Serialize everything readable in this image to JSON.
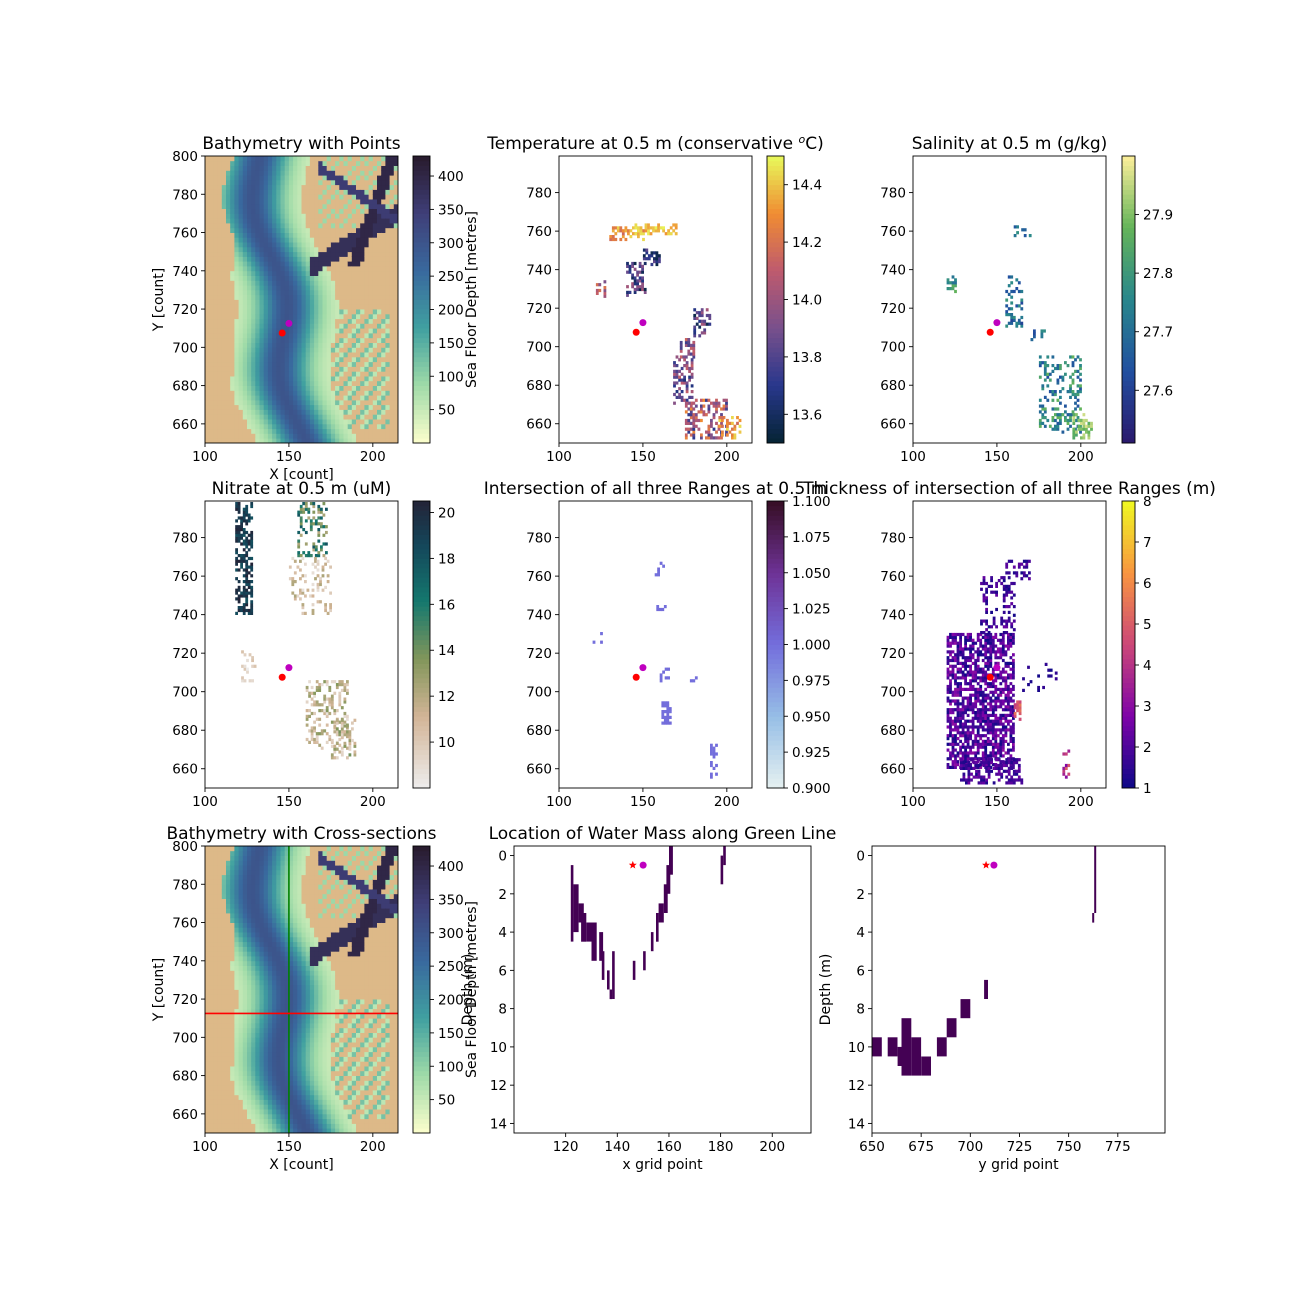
{
  "chart_data": [
    {
      "id": "bathy_points",
      "type": "heatmap",
      "title": "Bathymetry with Points",
      "xlabel": "X [count]",
      "ylabel": "Y [count]",
      "xlim": [
        100,
        215
      ],
      "ylim": [
        650,
        800
      ],
      "xticks": [
        "100",
        "150",
        "200"
      ],
      "yticks": [
        "660",
        "680",
        "700",
        "720",
        "740",
        "760",
        "780",
        "800"
      ],
      "colorbar": {
        "label": "Sea Floor Depth [metres]",
        "range": [
          0,
          430
        ],
        "ticks": [
          "50",
          "100",
          "150",
          "200",
          "250",
          "300",
          "350",
          "400"
        ],
        "colormap": "deep"
      },
      "points": [
        {
          "x": 146,
          "y": 707.5,
          "color": "#ff0000"
        },
        {
          "x": 150,
          "y": 712.5,
          "color": "#bf00bf"
        }
      ]
    },
    {
      "id": "temperature",
      "type": "heatmap",
      "title": "Temperature at 0.5 m (conservative ",
      "title_sup": "o",
      "title_end": "C)",
      "xlim": [
        100,
        215
      ],
      "ylim": [
        650,
        799
      ],
      "xticks": [
        "100",
        "150",
        "200"
      ],
      "yticks": [
        "660",
        "680",
        "700",
        "720",
        "740",
        "760",
        "780"
      ],
      "colorbar": {
        "label": "",
        "range": [
          13.5,
          14.5
        ],
        "ticks": [
          "13.6",
          "13.8",
          "14.0",
          "14.2",
          "14.4"
        ],
        "colormap": "thermal"
      },
      "points": [
        {
          "x": 146,
          "y": 707.5,
          "color": "#ff0000"
        },
        {
          "x": 150,
          "y": 712.5,
          "color": "#bf00bf"
        }
      ]
    },
    {
      "id": "salinity",
      "type": "heatmap",
      "title": "Salinity at 0.5 m (g/kg)",
      "xlim": [
        100,
        215
      ],
      "ylim": [
        650,
        799
      ],
      "xticks": [
        "100",
        "150",
        "200"
      ],
      "yticks": [
        "660",
        "680",
        "700",
        "720",
        "740",
        "760",
        "780"
      ],
      "colorbar": {
        "label": "",
        "range": [
          27.51,
          28.0
        ],
        "ticks": [
          "27.6",
          "27.7",
          "27.8",
          "27.9"
        ],
        "colormap": "haline"
      },
      "points": [
        {
          "x": 146,
          "y": 707.5,
          "color": "#ff0000"
        },
        {
          "x": 150,
          "y": 712.5,
          "color": "#bf00bf"
        }
      ]
    },
    {
      "id": "nitrate",
      "type": "heatmap",
      "title": "Nitrate at 0.5 m (uM)",
      "xlim": [
        100,
        215
      ],
      "ylim": [
        650,
        799
      ],
      "xticks": [
        "100",
        "150",
        "200"
      ],
      "yticks": [
        "660",
        "680",
        "700",
        "720",
        "740",
        "760",
        "780"
      ],
      "colorbar": {
        "label": "",
        "range": [
          8,
          20.5
        ],
        "ticks": [
          "10",
          "12",
          "14",
          "16",
          "18",
          "20"
        ],
        "colormap": "rain"
      },
      "points": [
        {
          "x": 146,
          "y": 707.5,
          "color": "#ff0000"
        },
        {
          "x": 150,
          "y": 712.5,
          "color": "#bf00bf"
        }
      ]
    },
    {
      "id": "intersection",
      "type": "heatmap",
      "title": "Intersection of all three Ranges at 0.5 m",
      "xlim": [
        100,
        215
      ],
      "ylim": [
        650,
        799
      ],
      "xticks": [
        "100",
        "150",
        "200"
      ],
      "yticks": [
        "660",
        "680",
        "700",
        "720",
        "740",
        "760",
        "780"
      ],
      "colorbar": {
        "label": "",
        "range": [
          0.9,
          1.1
        ],
        "ticks": [
          "0.900",
          "0.925",
          "0.950",
          "0.975",
          "1.000",
          "1.025",
          "1.050",
          "1.075",
          "1.100"
        ],
        "colormap": "dense"
      },
      "points": [
        {
          "x": 146,
          "y": 707.5,
          "color": "#ff0000"
        },
        {
          "x": 150,
          "y": 712.5,
          "color": "#bf00bf"
        }
      ]
    },
    {
      "id": "thickness",
      "type": "heatmap",
      "title": "Thickness of intersection of all three Ranges (m)",
      "xlim": [
        100,
        215
      ],
      "ylim": [
        650,
        799
      ],
      "xticks": [
        "100",
        "150",
        "200"
      ],
      "yticks": [
        "660",
        "680",
        "700",
        "720",
        "740",
        "760",
        "780"
      ],
      "colorbar": {
        "label": "",
        "range": [
          1,
          8
        ],
        "ticks": [
          "1",
          "2",
          "3",
          "4",
          "5",
          "6",
          "7",
          "8"
        ],
        "colormap": "plasma"
      },
      "points": [
        {
          "x": 146,
          "y": 707.5,
          "color": "#ff0000"
        },
        {
          "x": 150,
          "y": 712.5,
          "color": "#bf00bf"
        }
      ]
    },
    {
      "id": "bathy_sections",
      "type": "heatmap",
      "title": "Bathymetry with Cross-sections",
      "xlabel": "X [count]",
      "ylabel": "Y [count]",
      "xlim": [
        100,
        215
      ],
      "ylim": [
        650,
        800
      ],
      "xticks": [
        "100",
        "150",
        "200"
      ],
      "yticks": [
        "660",
        "680",
        "700",
        "720",
        "740",
        "760",
        "780",
        "800"
      ],
      "colorbar": {
        "label": "Sea Floor Depth [metres]",
        "range": [
          0,
          430
        ],
        "ticks": [
          "50",
          "100",
          "150",
          "200",
          "250",
          "300",
          "350",
          "400"
        ],
        "colormap": "deep"
      },
      "lines": [
        {
          "orientation": "vertical",
          "value": 150,
          "color": "#008000"
        },
        {
          "orientation": "horizontal",
          "value": 712.5,
          "color": "#ff0000"
        }
      ]
    },
    {
      "id": "green_section",
      "type": "heatmap",
      "title": "Location of Water Mass along Green Line",
      "xlabel": "x grid point",
      "ylabel": "Depth (m)",
      "xlim": [
        100,
        215
      ],
      "ylim": [
        14.5,
        -0.5
      ],
      "xticks": [
        "120",
        "140",
        "160",
        "180",
        "200"
      ],
      "yticks": [
        "0",
        "2",
        "4",
        "6",
        "8",
        "10",
        "12",
        "14"
      ],
      "color": "#440154",
      "cells": [
        [
          122,
          0.5,
          1,
          4
        ],
        [
          123,
          1.5,
          2,
          2.5
        ],
        [
          125,
          2.5,
          2,
          1
        ],
        [
          126,
          3,
          2,
          1.5
        ],
        [
          128,
          3.5,
          2,
          1
        ],
        [
          130,
          3.5,
          2,
          2
        ],
        [
          133,
          4,
          1.5,
          1.5
        ],
        [
          134,
          5,
          1,
          1.5
        ],
        [
          136,
          6,
          1,
          1
        ],
        [
          137,
          7,
          1,
          0.5
        ],
        [
          138,
          5,
          1,
          2.5
        ],
        [
          146,
          5.5,
          1,
          1
        ],
        [
          150,
          5,
          1,
          1
        ],
        [
          153,
          4,
          1,
          1
        ],
        [
          155,
          3,
          1,
          1.5
        ],
        [
          156,
          2.5,
          2,
          1
        ],
        [
          158,
          1.5,
          1.5,
          1.5
        ],
        [
          159,
          0.5,
          1.5,
          1.5
        ],
        [
          160,
          -0.5,
          1.5,
          1.5
        ],
        [
          180,
          0,
          1,
          1.5
        ],
        [
          181,
          -0.5,
          1,
          1
        ]
      ],
      "points": [
        {
          "x": 146,
          "y": 0.5,
          "color": "#ff0000",
          "marker": "star"
        },
        {
          "x": 150,
          "y": 0.5,
          "color": "#bf00bf",
          "marker": "circle"
        }
      ]
    },
    {
      "id": "red_section",
      "type": "heatmap",
      "title": "",
      "xlabel": "y grid point",
      "ylabel": "Depth (m)",
      "xlim": [
        650,
        799
      ],
      "ylim": [
        14.5,
        -0.5
      ],
      "xticks": [
        "650",
        "675",
        "700",
        "725",
        "750",
        "775"
      ],
      "yticks": [
        "0",
        "2",
        "4",
        "6",
        "8",
        "10",
        "12",
        "14"
      ],
      "color": "#440154",
      "cells": [
        [
          650,
          9.5,
          5,
          1
        ],
        [
          658,
          9.5,
          5,
          1
        ],
        [
          663,
          10,
          5,
          1
        ],
        [
          665,
          8.5,
          5,
          3
        ],
        [
          670,
          9.5,
          5,
          2
        ],
        [
          675,
          10.5,
          5,
          1
        ],
        [
          683,
          9.5,
          5,
          1
        ],
        [
          688,
          8.5,
          5,
          1
        ],
        [
          695,
          7.5,
          5,
          1
        ],
        [
          707,
          6.5,
          2,
          1
        ],
        [
          762,
          3,
          1,
          0.5
        ],
        [
          763,
          -0.5,
          1,
          3.5
        ]
      ],
      "points": [
        {
          "x": 708,
          "y": 0.5,
          "color": "#ff0000",
          "marker": "star"
        },
        {
          "x": 712,
          "y": 0.5,
          "color": "#bf00bf",
          "marker": "circle"
        }
      ]
    }
  ]
}
